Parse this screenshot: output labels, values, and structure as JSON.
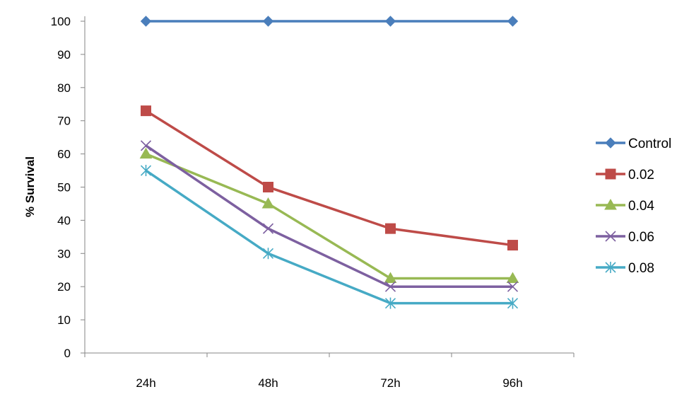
{
  "chart_data": {
    "type": "line",
    "title": "",
    "xlabel": "",
    "ylabel": "% Survival",
    "categories": [
      "24h",
      "48h",
      "72h",
      "96h"
    ],
    "ylim": [
      0,
      100
    ],
    "yticks": [
      0,
      10,
      20,
      30,
      40,
      50,
      60,
      70,
      80,
      90,
      100
    ],
    "grid": false,
    "legend_position": "right",
    "series": [
      {
        "name": "Control",
        "values": [
          100,
          100,
          100,
          100
        ],
        "color": "#4a7ebb",
        "marker": "diamond"
      },
      {
        "name": "0.02",
        "values": [
          73,
          50,
          37.5,
          32.5
        ],
        "color": "#be4b48",
        "marker": "square"
      },
      {
        "name": "0.04",
        "values": [
          60,
          45,
          22.5,
          22.5
        ],
        "color": "#98b954",
        "marker": "triangle"
      },
      {
        "name": "0.06",
        "values": [
          62.5,
          37.5,
          20,
          20
        ],
        "color": "#7d60a0",
        "marker": "x"
      },
      {
        "name": "0.08",
        "values": [
          55,
          30,
          15,
          15
        ],
        "color": "#46aac5",
        "marker": "star"
      }
    ]
  }
}
